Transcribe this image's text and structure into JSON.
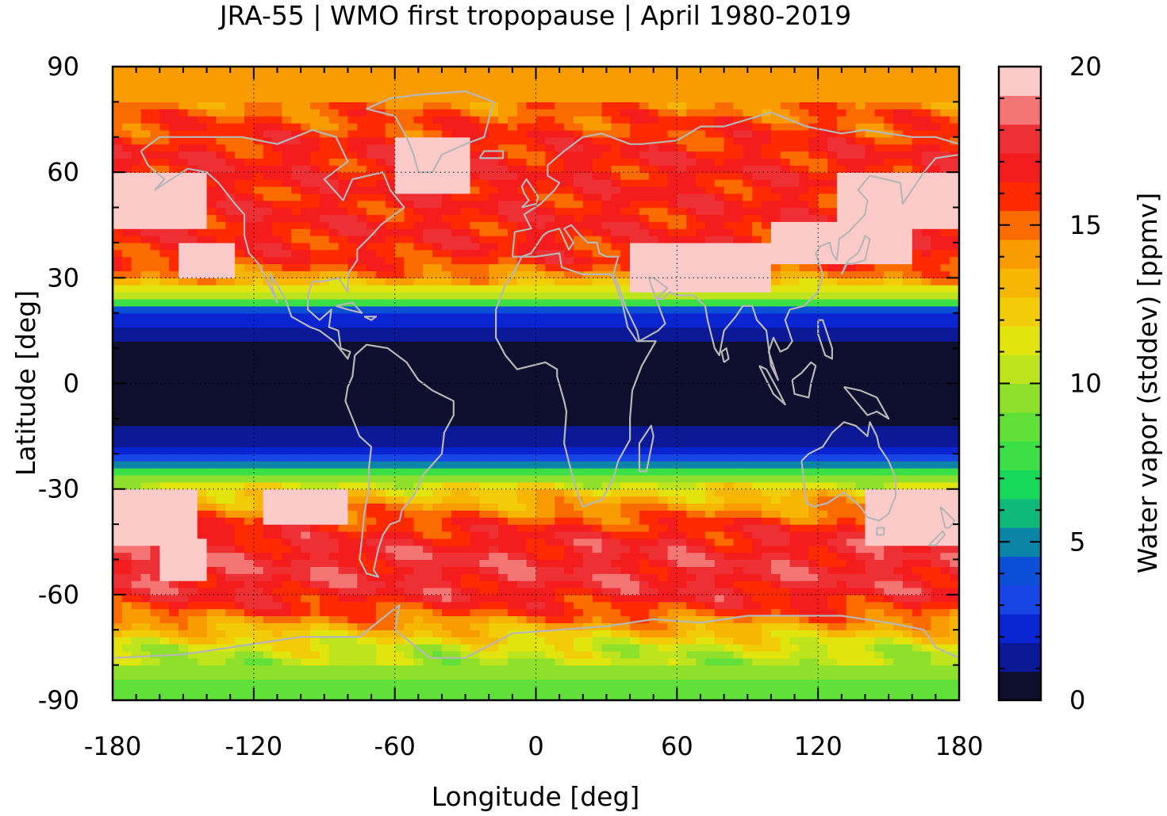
{
  "chart_data": {
    "type": "heatmap",
    "title": "JRA-55 | WMO first tropopause | April 1980-2019",
    "xlabel": "Longitude [deg]",
    "ylabel": "Latitude [deg]",
    "colorbar_label": "Water vapor (stddev) [ppmv]",
    "xlim": [
      -180,
      180
    ],
    "ylim": [
      -90,
      90
    ],
    "xticks": [
      -180,
      -120,
      -60,
      0,
      60,
      120,
      180
    ],
    "yticks": [
      -90,
      -60,
      -30,
      0,
      30,
      60,
      90
    ],
    "colorbar_range": [
      0,
      20
    ],
    "colorbar_ticks": [
      0,
      5,
      10,
      15,
      20
    ],
    "grid": true,
    "colorbar_colors": [
      "#0e0e2e",
      "#0c1996",
      "#0a24d2",
      "#1845e6",
      "#0a4fd6",
      "#0b84a8",
      "#10b87a",
      "#18d85a",
      "#3ce046",
      "#62e03a",
      "#8ee02a",
      "#bde41c",
      "#e2e40e",
      "#f2cc08",
      "#f8b604",
      "#f99c02",
      "#fb6c00",
      "#ff2a00",
      "#f41c1c",
      "#ee3034",
      "#f57474",
      "#fdcaca"
    ],
    "zonal_profile": {
      "lat": [
        -90,
        -85,
        -80,
        -75,
        -70,
        -65,
        -60,
        -55,
        -50,
        -45,
        -40,
        -35,
        -30,
        -25,
        -22,
        -20,
        -15,
        -10,
        -5,
        0,
        5,
        10,
        15,
        20,
        22,
        25,
        30,
        35,
        40,
        45,
        50,
        55,
        60,
        65,
        70,
        75,
        80,
        85,
        90
      ],
      "value": [
        8.5,
        9,
        10,
        11,
        13,
        15.5,
        17,
        17.5,
        17.5,
        17,
        16,
        14,
        12,
        8,
        4,
        2,
        1.5,
        0.5,
        0.3,
        0.3,
        0.3,
        0.5,
        1.5,
        3,
        6,
        10,
        14,
        16,
        16.5,
        16.5,
        16.5,
        16.5,
        16.5,
        16.5,
        16,
        15.5,
        14.5,
        14,
        14
      ]
    },
    "high_variance_regions": [
      {
        "lon": [
          -180,
          -145
        ],
        "lat": [
          -45,
          -30
        ],
        "value": 19.5
      },
      {
        "lon": [
          -160,
          -140
        ],
        "lat": [
          -55,
          -45
        ],
        "value": 19.5
      },
      {
        "lon": [
          -115,
          -80
        ],
        "lat": [
          -40,
          -30
        ],
        "value": 19.5
      },
      {
        "lon": [
          140,
          180
        ],
        "lat": [
          -45,
          -30
        ],
        "value": 19.5
      },
      {
        "lon": [
          -180,
          -140
        ],
        "lat": [
          45,
          60
        ],
        "value": 19.5
      },
      {
        "lon": [
          -150,
          -130
        ],
        "lat": [
          30,
          40
        ],
        "value": 19.5
      },
      {
        "lon": [
          -60,
          -30
        ],
        "lat": [
          55,
          70
        ],
        "value": 19.5
      },
      {
        "lon": [
          40,
          100
        ],
        "lat": [
          27,
          40
        ],
        "value": 19.5
      },
      {
        "lon": [
          100,
          160
        ],
        "lat": [
          35,
          45
        ],
        "value": 19.5
      },
      {
        "lon": [
          130,
          180
        ],
        "lat": [
          45,
          60
        ],
        "value": 19.5
      }
    ]
  }
}
